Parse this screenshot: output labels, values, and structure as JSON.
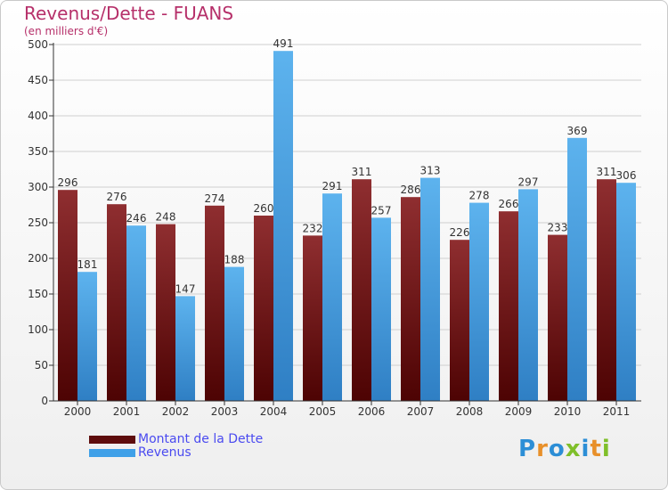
{
  "header": {
    "title": "Revenus/Dette - FUANS",
    "subtitle": "(en milliers d'€)"
  },
  "chart_data": {
    "type": "bar",
    "categories": [
      "2000",
      "2001",
      "2002",
      "2003",
      "2004",
      "2005",
      "2006",
      "2007",
      "2008",
      "2009",
      "2010",
      "2011"
    ],
    "series": [
      {
        "name": "Montant de la Dette",
        "values": [
          296,
          276,
          248,
          274,
          260,
          232,
          311,
          286,
          226,
          266,
          233,
          311
        ],
        "color": "#7a1f1f"
      },
      {
        "name": "Revenus",
        "values": [
          181,
          246,
          147,
          188,
          491,
          291,
          257,
          313,
          278,
          297,
          369,
          306
        ],
        "color": "#4aa3e6"
      }
    ],
    "title": "Revenus/Dette - FUANS",
    "ylabel": "(en milliers d'€)",
    "ylim": [
      0,
      500
    ],
    "yticks": [
      0,
      50,
      100,
      150,
      200,
      250,
      300,
      350,
      400,
      450,
      500
    ],
    "grid": true,
    "legend": "bottom-left"
  },
  "legend": {
    "items": [
      {
        "label": "Montant de la Dette",
        "color": "#5e0d0d"
      },
      {
        "label": "Revenus",
        "color": "#3fa0e8"
      }
    ]
  },
  "logo": {
    "text": "Proxiti",
    "letter_colors": [
      "#2c8ed6",
      "#e8902a",
      "#2c8ed6",
      "#7fbf2a",
      "#2c8ed6",
      "#e8902a",
      "#7fbf2a"
    ]
  }
}
